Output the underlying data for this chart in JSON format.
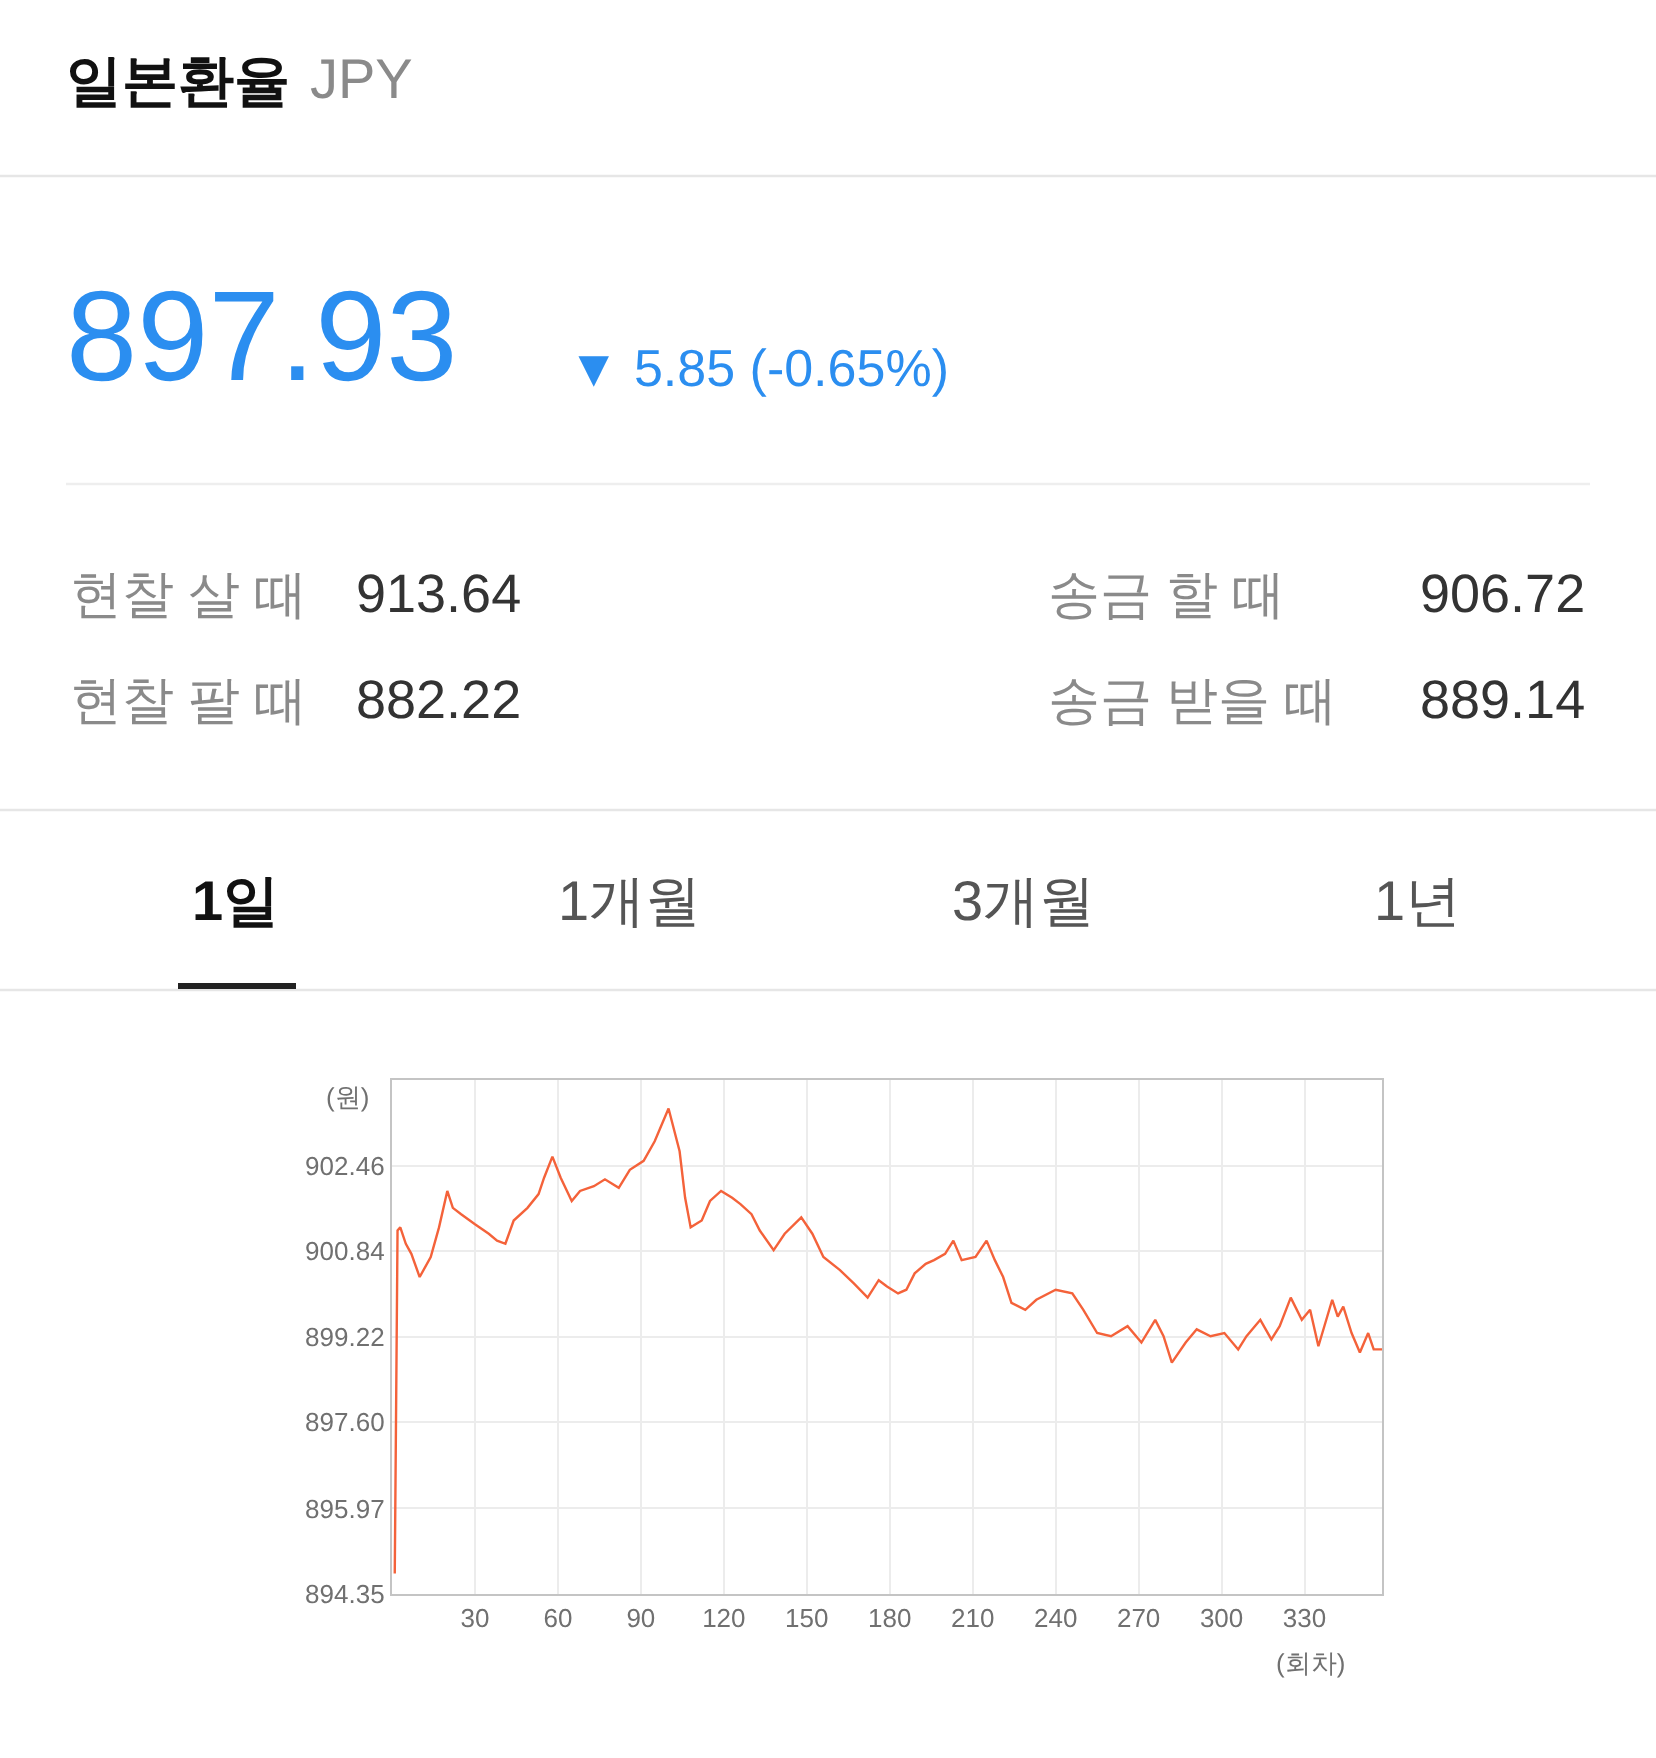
{
  "chart_data": {
    "type": "line",
    "title": "일본환율",
    "subtitle": "JPY",
    "xlabel": "(회차)",
    "ylabel": "(원)",
    "annotations": [
      "897.93",
      "▼ 5.85 (-0.65%)",
      "현찰 살 때",
      "913.64",
      "현찰 팔 때",
      "882.22",
      "송금 할 때",
      "906.72",
      "송금 받을 때",
      "889.14",
      "1일",
      "1개월",
      "3개월",
      "1년"
    ],
    "x": [
      1,
      2,
      3,
      5,
      7,
      10,
      14,
      17,
      20,
      22,
      25,
      30,
      35,
      38,
      41,
      44,
      49,
      53,
      55,
      58,
      61,
      65,
      68,
      73,
      77,
      82,
      86,
      91,
      95,
      100,
      104,
      106,
      108,
      112,
      115,
      119,
      123,
      126,
      130,
      133,
      138,
      142,
      148,
      152,
      156,
      162,
      167,
      172,
      176,
      179,
      183,
      186,
      189,
      193,
      196,
      200,
      203,
      206,
      211,
      215,
      218,
      221,
      224,
      229,
      233,
      240,
      246,
      250,
      255,
      260,
      266,
      271,
      276,
      279,
      282,
      287,
      291,
      296,
      301,
      306,
      309,
      314,
      318,
      321,
      325,
      329,
      332,
      335,
      340,
      342,
      344,
      347,
      350,
      353,
      355,
      358
    ],
    "series": [
      {
        "color": "#f4623a",
        "values": [
          894.74,
          901.23,
          901.29,
          900.98,
          900.79,
          900.35,
          900.73,
          901.29,
          901.98,
          901.66,
          901.54,
          901.35,
          901.17,
          901.04,
          900.98,
          901.42,
          901.66,
          901.92,
          902.23,
          902.63,
          902.23,
          901.79,
          901.98,
          902.07,
          902.2,
          902.04,
          902.38,
          902.55,
          902.92,
          903.54,
          902.73,
          901.85,
          901.29,
          901.42,
          901.79,
          901.98,
          901.85,
          901.73,
          901.54,
          901.23,
          900.86,
          901.17,
          901.48,
          901.17,
          900.73,
          900.48,
          900.23,
          899.96,
          900.29,
          900.17,
          900.04,
          900.11,
          900.42,
          900.6,
          900.67,
          900.79,
          901.04,
          900.67,
          900.73,
          901.04,
          900.67,
          900.35,
          899.86,
          899.73,
          899.92,
          900.11,
          900.04,
          899.73,
          899.29,
          899.23,
          899.42,
          899.11,
          899.54,
          899.23,
          898.73,
          899.11,
          899.36,
          899.23,
          899.29,
          898.98,
          899.23,
          899.54,
          899.17,
          899.42,
          899.96,
          899.54,
          899.73,
          899.04,
          899.92,
          899.6,
          899.79,
          899.29,
          898.92,
          899.29,
          898.98,
          898.98
        ]
      }
    ],
    "xlim": [
      0,
      358
    ],
    "ylim": [
      894.35,
      904.08
    ],
    "xticks": [
      30,
      60,
      90,
      120,
      150,
      180,
      210,
      240,
      270,
      300,
      330
    ],
    "yticks": [
      894.35,
      895.97,
      {
        "value": 897.6,
        "label": "897.60"
      },
      899.22,
      900.84,
      902.46
    ],
    "grid": true,
    "line_style": "solid"
  }
}
